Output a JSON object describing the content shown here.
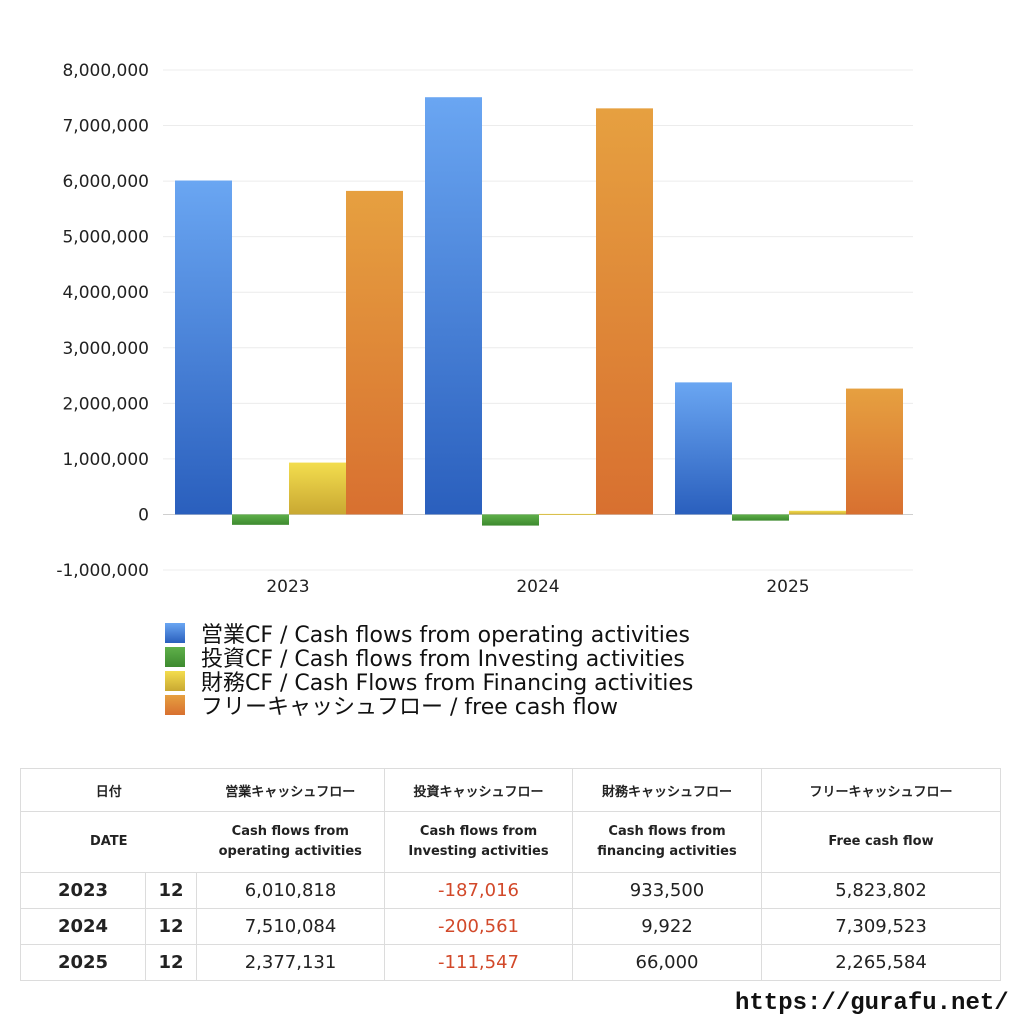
{
  "chart_data": {
    "type": "bar",
    "categories": [
      "2023",
      "2024",
      "2025"
    ],
    "ylim": [
      -1000000,
      8000000
    ],
    "yticks": [
      8000000,
      7000000,
      6000000,
      5000000,
      4000000,
      3000000,
      2000000,
      1000000,
      0,
      -1000000
    ],
    "grid": true,
    "legend_position": "bottom",
    "series": [
      {
        "name": "営業CF / Cash flows from operating activities",
        "color": "#3a78d6",
        "values": [
          6010818,
          7510084,
          2377131
        ]
      },
      {
        "name": "投資CF / Cash flows from Investing activities",
        "color": "#4c9a3a",
        "values": [
          -187016,
          -200561,
          -111547
        ]
      },
      {
        "name": "財務CF / Cash Flows from Financing activities",
        "color": "#e6c43a",
        "values": [
          933500,
          9922,
          66000
        ]
      },
      {
        "name": "フリーキャッシュフロー / free cash flow",
        "color": "#e08838",
        "values": [
          5823802,
          7309523,
          2265584
        ]
      }
    ]
  },
  "table": {
    "headers_jp": [
      "日付",
      "営業キャッシュフロー",
      "投資キャッシュフロー",
      "財務キャッシュフロー",
      "フリーキャッシュフロー"
    ],
    "headers_en": {
      "date": "DATE",
      "operating_1": "Cash flows from",
      "operating_2": "operating activities",
      "investing_1": "Cash flows from",
      "investing_2": "Investing activities",
      "financing_1": "Cash flows from",
      "financing_2": "financing activities",
      "free": "Free cash flow"
    },
    "rows": [
      {
        "year": "2023",
        "month": "12",
        "operating": "6,010,818",
        "investing": "-187,016",
        "financing": "933,500",
        "free": "5,823,802"
      },
      {
        "year": "2024",
        "month": "12",
        "operating": "7,510,084",
        "investing": "-200,561",
        "financing": "9,922",
        "free": "7,309,523"
      },
      {
        "year": "2025",
        "month": "12",
        "operating": "2,377,131",
        "investing": "-111,547",
        "financing": "66,000",
        "free": "2,265,584"
      }
    ]
  },
  "source": "https://gurafu.net/"
}
